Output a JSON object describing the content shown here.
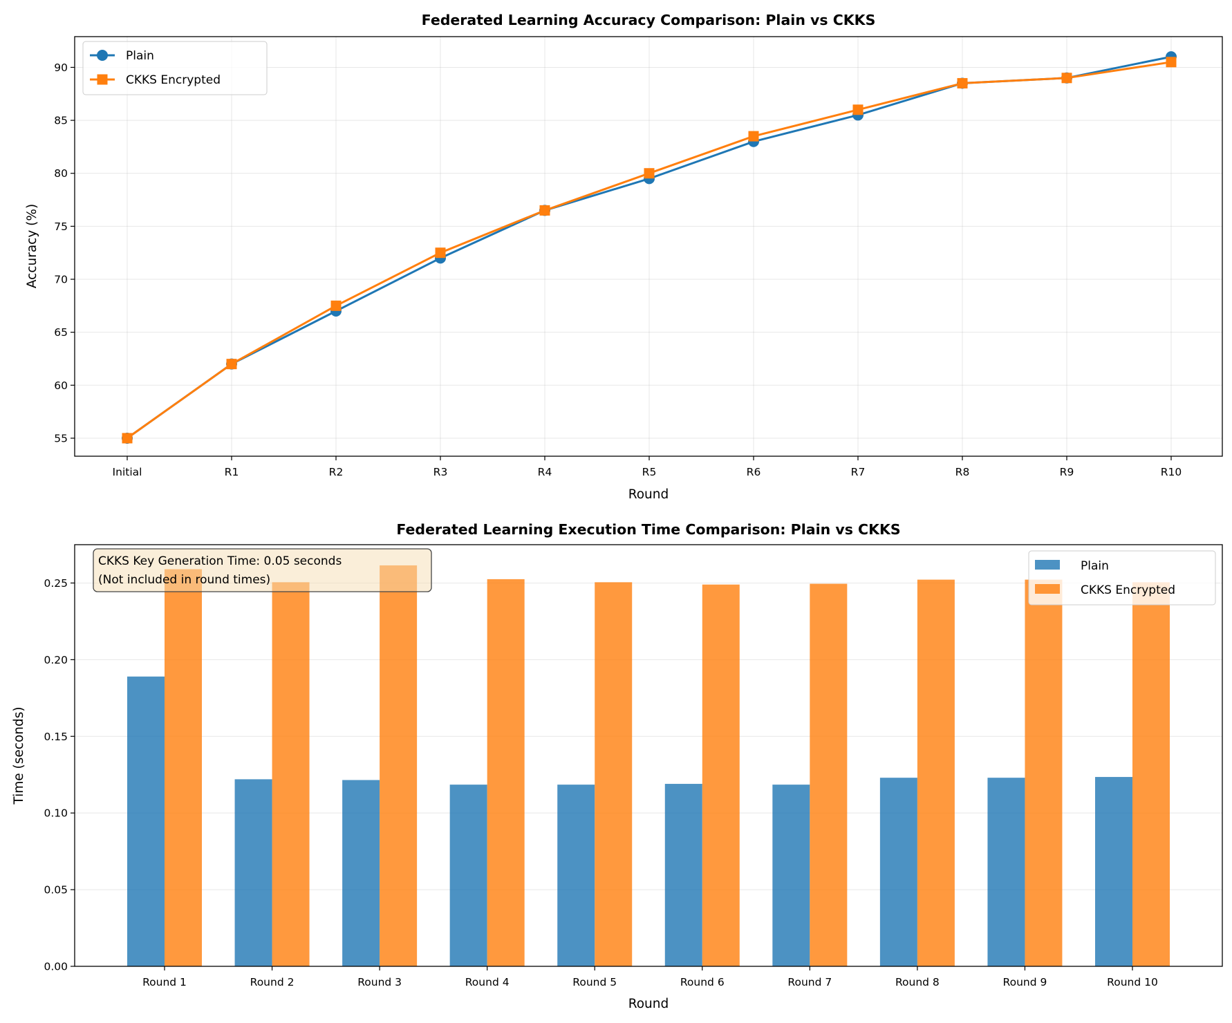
{
  "chart_data": [
    {
      "type": "line",
      "title": "Federated Learning Accuracy Comparison: Plain vs CKKS",
      "xlabel": "Round",
      "ylabel": "Accuracy (%)",
      "categories": [
        "Initial",
        "R1",
        "R2",
        "R3",
        "R4",
        "R5",
        "R6",
        "R7",
        "R8",
        "R9",
        "R10"
      ],
      "ylim": [
        53.3,
        92.9
      ],
      "yticks": [
        55,
        60,
        65,
        70,
        75,
        80,
        85,
        90
      ],
      "grid": true,
      "legend_position": "upper left",
      "series": [
        {
          "name": "Plain",
          "color": "#1f77b4",
          "marker": "circle",
          "values": [
            55,
            62,
            67,
            72,
            76.5,
            79.5,
            83,
            85.5,
            88.5,
            89,
            91
          ]
        },
        {
          "name": "CKKS Encrypted",
          "color": "#ff7f0e",
          "marker": "square",
          "values": [
            55,
            62,
            67.5,
            72.5,
            76.5,
            80,
            83.5,
            86,
            88.5,
            89,
            90.5
          ]
        }
      ]
    },
    {
      "type": "bar",
      "title": "Federated Learning Execution Time Comparison: Plain vs CKKS",
      "xlabel": "Round",
      "ylabel": "Time (seconds)",
      "categories": [
        "Round 1",
        "Round 2",
        "Round 3",
        "Round 4",
        "Round 5",
        "Round 6",
        "Round 7",
        "Round 8",
        "Round 9",
        "Round 10"
      ],
      "ylim": [
        0,
        0.275
      ],
      "yticks": [
        "0.00",
        "0.05",
        "0.10",
        "0.15",
        "0.20",
        "0.25"
      ],
      "grid": true,
      "legend_position": "upper right",
      "annotation": {
        "line1": "CKKS Key Generation Time: 0.05 seconds",
        "line2": "(Not included in round times)"
      },
      "series": [
        {
          "name": "Plain",
          "color": "#1f77b4",
          "values": [
            0.189,
            0.122,
            0.1215,
            0.1185,
            0.1185,
            0.119,
            0.1185,
            0.123,
            0.123,
            0.1235
          ]
        },
        {
          "name": "CKKS Encrypted",
          "color": "#ff7f0e",
          "values": [
            0.259,
            0.2505,
            0.2615,
            0.2525,
            0.2505,
            0.249,
            0.2495,
            0.2522,
            0.2522,
            0.2505
          ]
        }
      ]
    }
  ]
}
